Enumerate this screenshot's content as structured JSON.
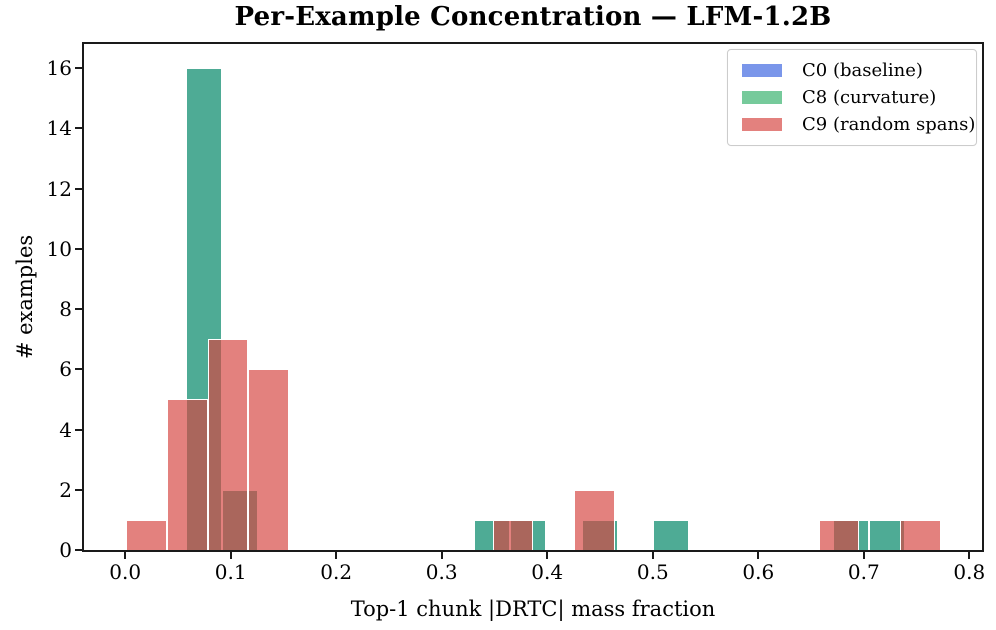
{
  "chart_data": {
    "type": "bar",
    "subtype": "overlapping-histograms",
    "title": "Per-Example Concentration — LFM-1.2B",
    "xlabel": "Top-1 chunk |DRTC| mass fraction",
    "ylabel": "# examples",
    "xlim": [
      -0.039,
      0.812
    ],
    "ylim": [
      0,
      16.8
    ],
    "xticks": [
      0.0,
      0.1,
      0.2,
      0.3,
      0.4,
      0.5,
      0.6,
      0.7,
      0.8
    ],
    "xtick_labels": [
      "0.0",
      "0.1",
      "0.2",
      "0.3",
      "0.4",
      "0.5",
      "0.6",
      "0.7",
      "0.8"
    ],
    "yticks": [
      0,
      2,
      4,
      6,
      8,
      10,
      12,
      14,
      16
    ],
    "ytick_labels": [
      "0",
      "2",
      "4",
      "6",
      "8",
      "10",
      "12",
      "14",
      "16"
    ],
    "grid": false,
    "legend_position": "upper right",
    "bar_edge_color": "#ffffff",
    "series": [
      {
        "name": "C0 (baseline)",
        "color": "rgba(65,105,225,0.70)",
        "base_color_hex": "#4169E1",
        "note_visibility": "fully hidden beneath C8 bars; visible only as teal tint",
        "bins": [
          [
            0.058,
            0.0921,
            16
          ],
          [
            0.0921,
            0.1261,
            2
          ],
          [
            0.3304,
            0.3645,
            1
          ],
          [
            0.3645,
            0.3985,
            1
          ],
          [
            0.4325,
            0.4666,
            1
          ],
          [
            0.5006,
            0.5347,
            1
          ],
          [
            0.6709,
            0.7049,
            1
          ],
          [
            0.7049,
            0.739,
            1
          ]
        ]
      },
      {
        "name": "C8 (curvature)",
        "color": "rgba(60,179,113,0.70)",
        "base_color_hex": "#3CB371",
        "bins": [
          [
            0.058,
            0.0921,
            16
          ],
          [
            0.0921,
            0.1261,
            2
          ],
          [
            0.3304,
            0.3645,
            1
          ],
          [
            0.3645,
            0.3985,
            1
          ],
          [
            0.4325,
            0.4666,
            1
          ],
          [
            0.5006,
            0.5347,
            1
          ],
          [
            0.6709,
            0.7049,
            1
          ],
          [
            0.7049,
            0.739,
            1
          ]
        ]
      },
      {
        "name": "C9 (random spans)",
        "color": "rgba(214,69,65,0.68)",
        "base_color_hex": "#D64541",
        "bins": [
          [
            0.001,
            0.0396,
            1
          ],
          [
            0.0396,
            0.0782,
            5
          ],
          [
            0.0782,
            0.1168,
            7
          ],
          [
            0.1168,
            0.1554,
            6
          ],
          [
            0.3484,
            0.387,
            1
          ],
          [
            0.4256,
            0.4642,
            2
          ],
          [
            0.6572,
            0.6958,
            1
          ],
          [
            0.7344,
            0.773,
            1
          ]
        ]
      }
    ]
  }
}
